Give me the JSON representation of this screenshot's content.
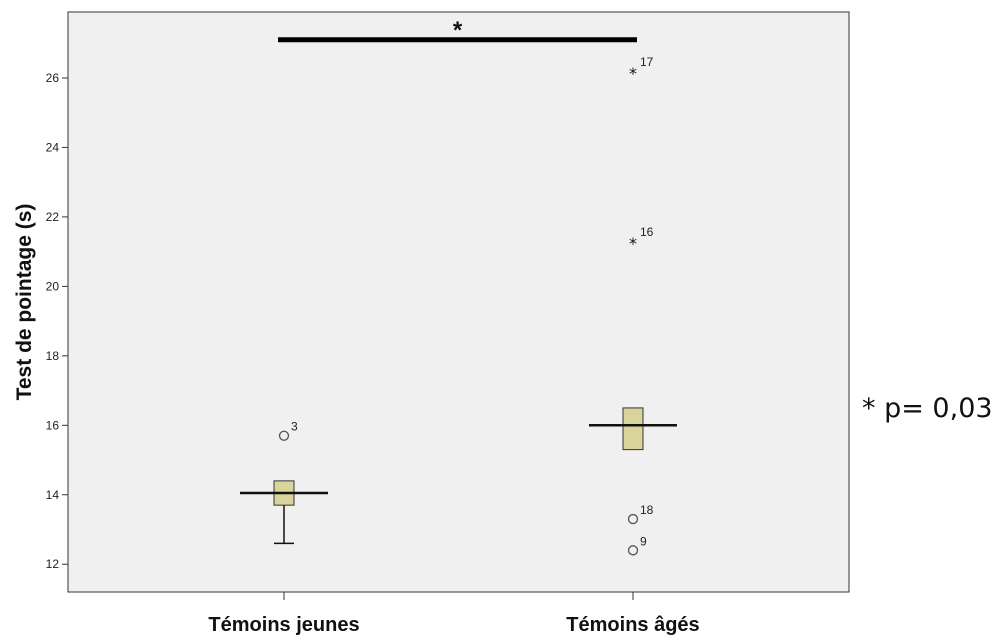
{
  "chart_data": {
    "type": "boxplot",
    "ylabel": "Test de pointage (s)",
    "yticks": [
      12,
      14,
      16,
      18,
      20,
      22,
      24,
      26
    ],
    "ylim": [
      11.2,
      27.9
    ],
    "grid": false,
    "categories": [
      "Témoins jeunes",
      "Témoins âgés"
    ],
    "boxes": [
      {
        "category": "Témoins jeunes",
        "whisker_low": 12.6,
        "q1": 13.7,
        "median": 14.05,
        "q3": 14.4,
        "whisker_high": 14.4,
        "outliers": [
          {
            "value": 15.7,
            "label": "3",
            "marker": "circle"
          }
        ]
      },
      {
        "category": "Témoins âgés",
        "whisker_low": 15.3,
        "q1": 15.3,
        "median": 16.0,
        "q3": 16.5,
        "whisker_high": 16.5,
        "outliers": [
          {
            "value": 26.2,
            "label": "17",
            "marker": "star"
          },
          {
            "value": 21.3,
            "label": "16",
            "marker": "star"
          },
          {
            "value": 13.3,
            "label": "18",
            "marker": "circle"
          },
          {
            "value": 12.4,
            "label": "9",
            "marker": "circle"
          }
        ]
      }
    ],
    "significance": {
      "from": "Témoins jeunes",
      "to": "Témoins âgés",
      "label": "*",
      "y": 27.1
    },
    "colors": {
      "box_fill": "#d9d49b",
      "plot_bg": "#f0f0f0"
    }
  },
  "annotation": "* p= 0,03"
}
